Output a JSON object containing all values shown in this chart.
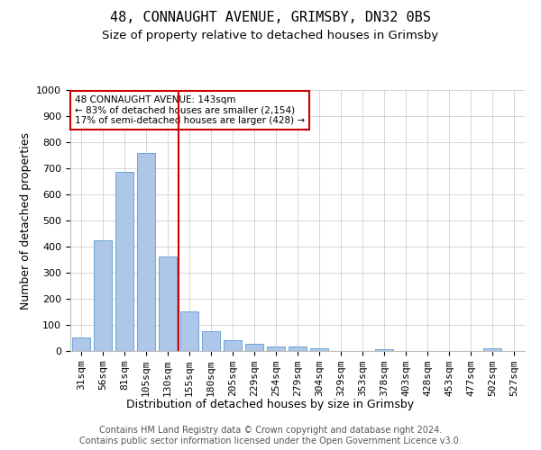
{
  "title": "48, CONNAUGHT AVENUE, GRIMSBY, DN32 0BS",
  "subtitle": "Size of property relative to detached houses in Grimsby",
  "xlabel": "Distribution of detached houses by size in Grimsby",
  "ylabel": "Number of detached properties",
  "categories": [
    "31sqm",
    "56sqm",
    "81sqm",
    "105sqm",
    "130sqm",
    "155sqm",
    "180sqm",
    "205sqm",
    "229sqm",
    "254sqm",
    "279sqm",
    "304sqm",
    "329sqm",
    "353sqm",
    "378sqm",
    "403sqm",
    "428sqm",
    "453sqm",
    "477sqm",
    "502sqm",
    "527sqm"
  ],
  "values": [
    52,
    425,
    687,
    760,
    362,
    153,
    75,
    40,
    28,
    18,
    18,
    10,
    0,
    0,
    8,
    0,
    0,
    0,
    0,
    10,
    0
  ],
  "bar_color": "#aec6e8",
  "bar_edge_color": "#5b9bd5",
  "vline_x": 4.5,
  "vline_color": "#cc0000",
  "annotation_text": "48 CONNAUGHT AVENUE: 143sqm\n← 83% of detached houses are smaller (2,154)\n17% of semi-detached houses are larger (428) →",
  "annotation_box_color": "#ffffff",
  "annotation_box_edge_color": "#cc0000",
  "ylim": [
    0,
    1000
  ],
  "yticks": [
    0,
    100,
    200,
    300,
    400,
    500,
    600,
    700,
    800,
    900,
    1000
  ],
  "footer_text": "Contains HM Land Registry data © Crown copyright and database right 2024.\nContains public sector information licensed under the Open Government Licence v3.0.",
  "title_fontsize": 11,
  "subtitle_fontsize": 9.5,
  "xlabel_fontsize": 9,
  "ylabel_fontsize": 9,
  "tick_fontsize": 8,
  "footer_fontsize": 7,
  "background_color": "#ffffff",
  "grid_color": "#d0d0d0"
}
